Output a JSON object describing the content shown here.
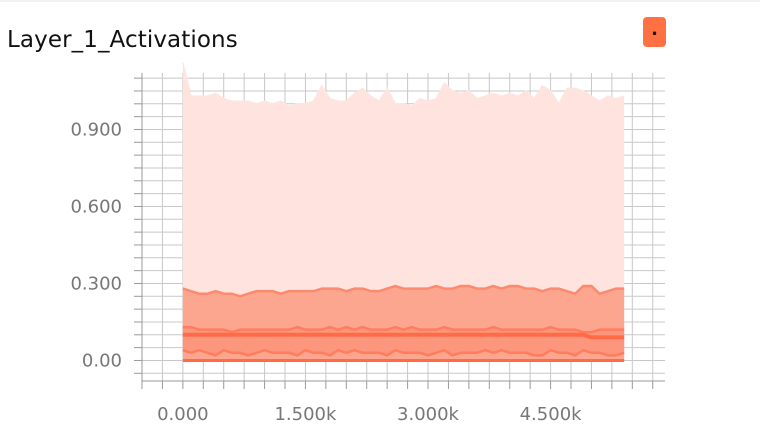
{
  "chart_data": {
    "type": "area",
    "title": "Layer_1_Activations",
    "xlabel": "",
    "ylabel": "",
    "xlim": [
      -500,
      5900
    ],
    "ylim": [
      -0.08,
      1.12
    ],
    "x_ticks": [
      0,
      1500,
      3000,
      4500
    ],
    "x_tick_labels": [
      "0.000",
      "1.500k",
      "3.000k",
      "4.500k"
    ],
    "y_ticks": [
      0,
      0.3,
      0.6,
      0.9
    ],
    "y_tick_labels": [
      "0.00",
      "0.300",
      "0.600",
      "0.900"
    ],
    "grid": true,
    "legend": {
      "placement": "top-right",
      "label": "."
    },
    "colors": {
      "outer_band": "#ffe3de",
      "outer_band_edge": "#fde6e2",
      "mid_band": "#fca58f",
      "mid_band_edge": "#fc8a6e",
      "inner_band": "#fc8a6e",
      "inner_line": "#ff7d5c",
      "median": "#ff6b47",
      "grid": "#c8c8c8",
      "tick_text": "#777777"
    },
    "x": [
      0,
      100,
      200,
      300,
      400,
      500,
      600,
      700,
      800,
      900,
      1000,
      1100,
      1200,
      1300,
      1400,
      1500,
      1600,
      1700,
      1800,
      1900,
      2000,
      2100,
      2200,
      2300,
      2400,
      2500,
      2600,
      2700,
      2800,
      2900,
      3000,
      3100,
      3200,
      3300,
      3400,
      3500,
      3600,
      3700,
      3800,
      3900,
      4000,
      4100,
      4200,
      4300,
      4400,
      4500,
      4600,
      4700,
      4800,
      4900,
      5000,
      5100,
      5200,
      5300,
      5400
    ],
    "series": [
      {
        "values": [
          1.16,
          1.03,
          1.03,
          1.03,
          1.04,
          1.02,
          1.01,
          1.01,
          1.01,
          1.0,
          1.01,
          1.0,
          1.01,
          0.99,
          1.0,
          1.0,
          1.01,
          1.07,
          1.02,
          1.01,
          1.01,
          1.04,
          1.06,
          1.03,
          1.01,
          1.06,
          1.0,
          1.0,
          0.99,
          1.02,
          1.01,
          1.02,
          1.08,
          1.05,
          1.04,
          1.05,
          1.02,
          1.03,
          1.04,
          1.03,
          1.04,
          1.03,
          1.05,
          1.02,
          1.07,
          1.05,
          1.0,
          1.06,
          1.06,
          1.05,
          1.03,
          1.01,
          1.03,
          1.02,
          1.03
        ]
      },
      {
        "values": [
          0.28,
          0.27,
          0.26,
          0.26,
          0.27,
          0.26,
          0.26,
          0.25,
          0.26,
          0.27,
          0.27,
          0.27,
          0.26,
          0.27,
          0.27,
          0.27,
          0.27,
          0.28,
          0.28,
          0.28,
          0.27,
          0.28,
          0.28,
          0.27,
          0.27,
          0.28,
          0.29,
          0.28,
          0.28,
          0.28,
          0.28,
          0.29,
          0.28,
          0.28,
          0.29,
          0.29,
          0.28,
          0.28,
          0.29,
          0.28,
          0.29,
          0.29,
          0.28,
          0.28,
          0.27,
          0.28,
          0.28,
          0.27,
          0.26,
          0.29,
          0.29,
          0.26,
          0.27,
          0.28,
          0.28
        ]
      },
      {
        "values": [
          0.13,
          0.13,
          0.12,
          0.12,
          0.12,
          0.12,
          0.11,
          0.12,
          0.12,
          0.12,
          0.12,
          0.12,
          0.12,
          0.12,
          0.13,
          0.12,
          0.12,
          0.12,
          0.13,
          0.12,
          0.13,
          0.12,
          0.13,
          0.12,
          0.12,
          0.12,
          0.13,
          0.12,
          0.13,
          0.12,
          0.12,
          0.12,
          0.13,
          0.12,
          0.12,
          0.12,
          0.12,
          0.12,
          0.13,
          0.12,
          0.12,
          0.12,
          0.12,
          0.12,
          0.12,
          0.13,
          0.12,
          0.12,
          0.12,
          0.11,
          0.11,
          0.12,
          0.12,
          0.12,
          0.12
        ]
      },
      {
        "values": [
          0.1,
          0.1,
          0.1,
          0.1,
          0.1,
          0.1,
          0.1,
          0.1,
          0.1,
          0.1,
          0.1,
          0.1,
          0.1,
          0.1,
          0.1,
          0.1,
          0.1,
          0.1,
          0.1,
          0.1,
          0.1,
          0.1,
          0.1,
          0.1,
          0.1,
          0.1,
          0.1,
          0.1,
          0.1,
          0.1,
          0.1,
          0.1,
          0.1,
          0.1,
          0.1,
          0.1,
          0.1,
          0.1,
          0.1,
          0.1,
          0.1,
          0.1,
          0.1,
          0.1,
          0.1,
          0.1,
          0.1,
          0.1,
          0.1,
          0.1,
          0.09,
          0.09,
          0.09,
          0.09,
          0.09
        ]
      },
      {
        "values": [
          0.04,
          0.03,
          0.04,
          0.03,
          0.02,
          0.04,
          0.03,
          0.03,
          0.02,
          0.03,
          0.04,
          0.03,
          0.03,
          0.03,
          0.02,
          0.04,
          0.03,
          0.03,
          0.02,
          0.04,
          0.03,
          0.04,
          0.03,
          0.03,
          0.03,
          0.02,
          0.04,
          0.03,
          0.03,
          0.03,
          0.02,
          0.03,
          0.04,
          0.02,
          0.03,
          0.03,
          0.03,
          0.04,
          0.03,
          0.04,
          0.03,
          0.03,
          0.03,
          0.02,
          0.02,
          0.04,
          0.03,
          0.03,
          0.02,
          0.04,
          0.03,
          0.03,
          0.02,
          0.02,
          0.03
        ]
      },
      {
        "values": [
          0.0,
          0.0,
          0.0,
          0.0,
          0.0,
          0.0,
          0.0,
          0.0,
          0.0,
          0.0,
          0.0,
          0.0,
          0.0,
          0.0,
          0.0,
          0.0,
          0.0,
          0.0,
          0.0,
          0.0,
          0.0,
          0.0,
          0.0,
          0.0,
          0.0,
          0.0,
          0.0,
          0.0,
          0.0,
          0.0,
          0.0,
          0.0,
          0.0,
          0.0,
          0.0,
          0.0,
          0.0,
          0.0,
          0.0,
          0.0,
          0.0,
          0.0,
          0.0,
          0.0,
          0.0,
          0.0,
          0.0,
          0.0,
          0.0,
          0.0,
          0.0,
          0.0,
          0.0,
          0.0,
          0.0
        ]
      }
    ]
  }
}
